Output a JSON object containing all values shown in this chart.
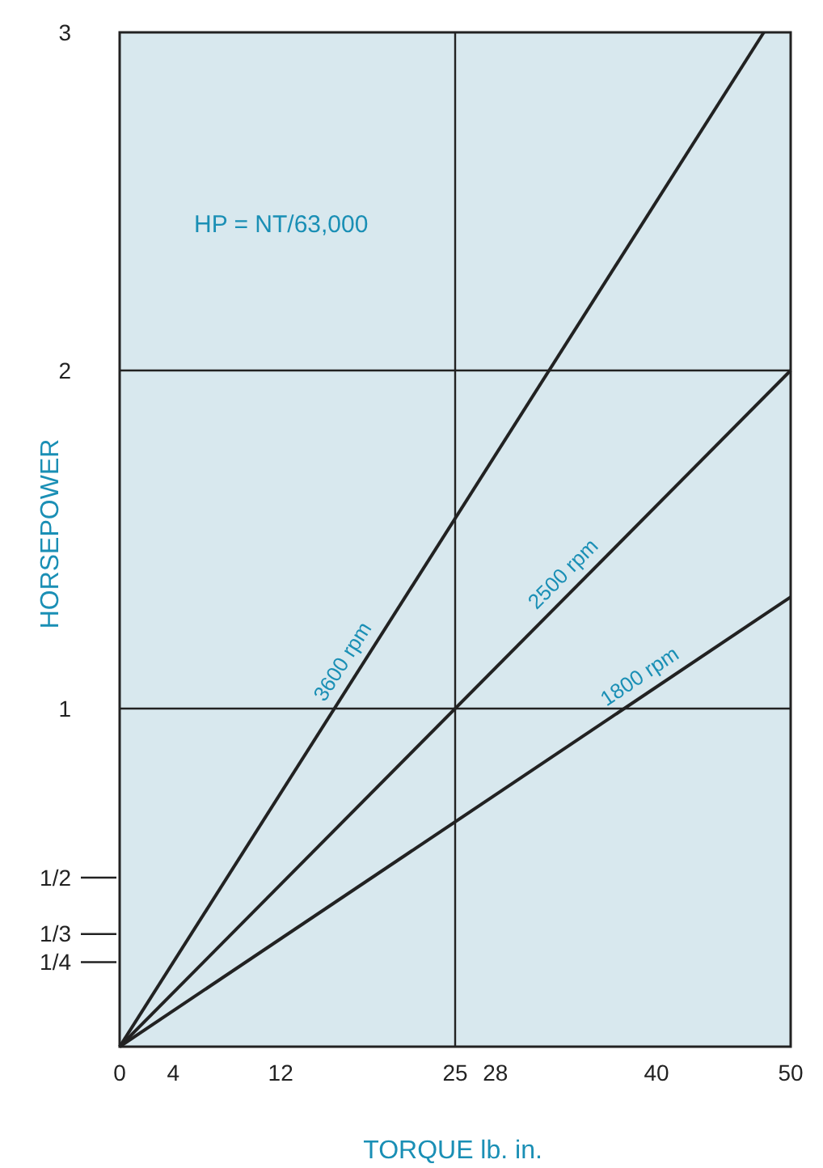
{
  "chart_data": {
    "type": "line",
    "xlabel": "TORQUE lb. in.",
    "ylabel": "HORSEPOWER",
    "annotations": [
      "HP = NT/63,000"
    ],
    "series": [
      {
        "name": "3600 rpm",
        "color": "#222222",
        "x": [
          0,
          48
        ],
        "values": [
          0,
          3
        ]
      },
      {
        "name": "2500 rpm",
        "color": "#222222",
        "x": [
          0,
          50
        ],
        "values": [
          0,
          2
        ]
      },
      {
        "name": "1800 rpm",
        "color": "#222222",
        "x": [
          0,
          50
        ],
        "values": [
          0,
          1.33
        ]
      }
    ],
    "xlim": [
      0,
      50
    ],
    "ylim": [
      0,
      3
    ],
    "xticks": [
      0,
      4,
      12,
      25,
      28,
      40,
      50
    ],
    "yticks": [
      {
        "value": 0.25,
        "label": "1/4"
      },
      {
        "value": 0.3333,
        "label": "1/3"
      },
      {
        "value": 0.5,
        "label": "1/2"
      },
      1,
      2,
      3
    ],
    "ref_lines": [
      {
        "axis": "x",
        "value": 25,
        "color": "#222222"
      },
      {
        "axis": "y",
        "value": 1,
        "color": "#222222"
      },
      {
        "axis": "y",
        "value": 2,
        "color": "#222222"
      }
    ],
    "line_style": "solid"
  }
}
